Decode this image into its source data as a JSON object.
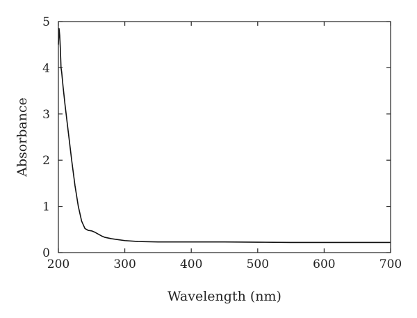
{
  "chart_data": {
    "type": "line",
    "title": "",
    "xlabel": "Wavelength (nm)",
    "ylabel": "Absorbance",
    "xlim": [
      200,
      700
    ],
    "ylim": [
      0,
      5
    ],
    "x_ticks": [
      "200",
      "300",
      "400",
      "500",
      "600",
      "700"
    ],
    "y_ticks": [
      "0",
      "1",
      "2",
      "3",
      "4",
      "5"
    ],
    "grid": false,
    "legend": "none",
    "line_color": "#111111",
    "series": [
      {
        "x": [
          200,
          201,
          202,
          203,
          204,
          205,
          207,
          210,
          215,
          220,
          225,
          230,
          235,
          240,
          245,
          250,
          255,
          260,
          265,
          270,
          280,
          290,
          300,
          320,
          350,
          400,
          450,
          500,
          550,
          600,
          650,
          700
        ],
        "y": [
          4.5,
          4.85,
          4.7,
          4.4,
          4.0,
          3.9,
          3.6,
          3.2,
          2.6,
          2.0,
          1.45,
          1.0,
          0.68,
          0.52,
          0.48,
          0.47,
          0.44,
          0.4,
          0.36,
          0.33,
          0.3,
          0.28,
          0.26,
          0.24,
          0.23,
          0.23,
          0.23,
          0.225,
          0.22,
          0.22,
          0.22,
          0.22
        ]
      }
    ]
  }
}
